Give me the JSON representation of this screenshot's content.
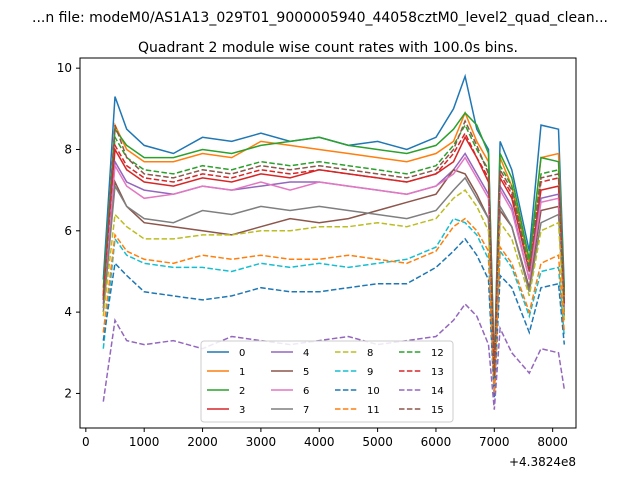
{
  "chart_data": {
    "type": "line",
    "suptitle": "...n file: modeM0/AS1A13_029T01_9000005940_44058cztM0_level2_quad_clean...",
    "title": "Quadrant 2 module wise count rates with 100.0s bins.",
    "xlabel": "",
    "ylabel": "",
    "x_offset_label": "+4.3824e8",
    "xlim": [
      -100,
      8400
    ],
    "ylim": [
      1.15,
      10.25
    ],
    "x_ticks": [
      0,
      1000,
      2000,
      3000,
      4000,
      5000,
      6000,
      7000,
      8000
    ],
    "y_ticks": [
      2,
      4,
      6,
      8,
      10
    ],
    "grid": false,
    "legend_placement": "lower-center",
    "legend_columns": 4,
    "x": [
      300,
      500,
      700,
      1000,
      1500,
      2000,
      2500,
      3000,
      3500,
      4000,
      4500,
      5000,
      5500,
      6000,
      6300,
      6500,
      6700,
      6900,
      7000,
      7100,
      7300,
      7600,
      7800,
      8100,
      8200
    ],
    "series": [
      {
        "name": "0",
        "style": "solid",
        "color": "#1f77b4",
        "values": [
          4.8,
          9.3,
          8.5,
          8.1,
          7.9,
          8.3,
          8.2,
          8.4,
          8.2,
          8.3,
          8.1,
          8.2,
          8.0,
          8.3,
          9.0,
          9.8,
          8.5,
          8.0,
          2.6,
          8.2,
          7.5,
          5.5,
          8.6,
          8.5,
          4.6
        ]
      },
      {
        "name": "1",
        "style": "solid",
        "color": "#ff7f0e",
        "values": [
          4.5,
          8.6,
          8.0,
          7.7,
          7.7,
          7.9,
          7.8,
          8.2,
          8.1,
          8.0,
          7.9,
          7.8,
          7.7,
          7.9,
          8.2,
          8.9,
          8.2,
          7.7,
          2.5,
          7.8,
          7.1,
          5.2,
          7.8,
          7.9,
          4.4
        ]
      },
      {
        "name": "2",
        "style": "solid",
        "color": "#2ca02c",
        "values": [
          4.6,
          8.5,
          8.1,
          7.8,
          7.8,
          8.0,
          7.9,
          8.1,
          8.2,
          8.3,
          8.1,
          8.0,
          7.9,
          8.1,
          8.5,
          8.9,
          8.6,
          7.9,
          2.6,
          7.9,
          7.3,
          5.3,
          7.8,
          7.7,
          4.5
        ]
      },
      {
        "name": "3",
        "style": "solid",
        "color": "#d62728",
        "values": [
          4.3,
          8.0,
          7.5,
          7.2,
          7.1,
          7.3,
          7.2,
          7.4,
          7.3,
          7.5,
          7.4,
          7.3,
          7.2,
          7.4,
          7.7,
          8.3,
          7.8,
          7.2,
          2.4,
          7.3,
          6.8,
          5.0,
          7.0,
          7.1,
          4.2
        ]
      },
      {
        "name": "4",
        "style": "solid",
        "color": "#9467bd",
        "values": [
          4.2,
          7.7,
          7.2,
          7.0,
          6.9,
          7.1,
          7.0,
          7.1,
          7.2,
          7.2,
          7.1,
          7.0,
          6.9,
          7.1,
          7.5,
          7.9,
          7.4,
          6.9,
          2.3,
          7.1,
          6.6,
          4.8,
          6.8,
          6.9,
          4.1
        ]
      },
      {
        "name": "5",
        "style": "solid",
        "color": "#8c564b",
        "values": [
          4.1,
          7.2,
          6.6,
          6.2,
          6.1,
          6.0,
          5.9,
          6.1,
          6.3,
          6.2,
          6.3,
          6.5,
          6.7,
          6.9,
          7.5,
          7.4,
          6.9,
          6.3,
          2.2,
          6.5,
          6.1,
          4.6,
          6.5,
          6.6,
          4.0
        ]
      },
      {
        "name": "6",
        "style": "solid",
        "color": "#e377c2",
        "values": [
          4.3,
          7.6,
          7.1,
          6.8,
          6.9,
          7.1,
          7.0,
          7.2,
          7.0,
          7.2,
          7.1,
          7.0,
          6.9,
          7.1,
          7.4,
          7.8,
          7.3,
          6.8,
          2.3,
          7.0,
          6.5,
          4.8,
          6.7,
          6.8,
          4.1
        ]
      },
      {
        "name": "7",
        "style": "solid",
        "color": "#7f7f7f",
        "values": [
          4.0,
          7.1,
          6.6,
          6.3,
          6.2,
          6.5,
          6.4,
          6.6,
          6.5,
          6.6,
          6.5,
          6.4,
          6.3,
          6.5,
          7.0,
          7.3,
          6.8,
          6.3,
          2.1,
          6.6,
          6.1,
          4.5,
          6.2,
          6.4,
          3.9
        ]
      },
      {
        "name": "8",
        "style": "dashed",
        "color": "#bcbd22",
        "values": [
          3.9,
          6.4,
          6.1,
          5.8,
          5.8,
          5.9,
          5.9,
          6.0,
          6.0,
          6.1,
          6.1,
          6.2,
          6.1,
          6.3,
          6.8,
          7.0,
          6.6,
          6.0,
          2.1,
          6.2,
          5.8,
          4.4,
          6.0,
          6.2,
          3.8
        ]
      },
      {
        "name": "9",
        "style": "dashed",
        "color": "#17becf",
        "values": [
          3.1,
          5.8,
          5.4,
          5.2,
          5.1,
          5.1,
          5.0,
          5.2,
          5.1,
          5.2,
          5.1,
          5.2,
          5.3,
          5.6,
          6.3,
          6.2,
          5.9,
          5.3,
          2.0,
          5.5,
          5.1,
          3.9,
          5.0,
          5.1,
          3.4
        ]
      },
      {
        "name": "10",
        "style": "dashed",
        "color": "#1f77b4",
        "values": [
          3.3,
          5.2,
          4.9,
          4.5,
          4.4,
          4.3,
          4.4,
          4.6,
          4.5,
          4.5,
          4.6,
          4.7,
          4.7,
          5.1,
          5.5,
          5.8,
          5.4,
          4.8,
          1.9,
          4.9,
          4.6,
          3.5,
          4.6,
          4.7,
          3.2
        ]
      },
      {
        "name": "11",
        "style": "dashed",
        "color": "#ff7f0e",
        "values": [
          3.5,
          5.9,
          5.5,
          5.3,
          5.2,
          5.4,
          5.3,
          5.4,
          5.3,
          5.3,
          5.4,
          5.3,
          5.2,
          5.5,
          6.1,
          6.3,
          6.0,
          5.5,
          2.0,
          5.6,
          5.2,
          4.0,
          5.2,
          5.4,
          3.5
        ]
      },
      {
        "name": "12",
        "style": "dashed",
        "color": "#2ca02c",
        "values": [
          4.4,
          8.3,
          7.8,
          7.5,
          7.4,
          7.6,
          7.5,
          7.7,
          7.6,
          7.7,
          7.6,
          7.5,
          7.4,
          7.6,
          8.1,
          8.6,
          8.0,
          7.5,
          2.5,
          7.6,
          7.1,
          5.1,
          7.4,
          7.5,
          4.3
        ]
      },
      {
        "name": "13",
        "style": "dashed",
        "color": "#d62728",
        "values": [
          4.4,
          8.1,
          7.6,
          7.3,
          7.2,
          7.4,
          7.3,
          7.5,
          7.4,
          7.5,
          7.4,
          7.3,
          7.2,
          7.4,
          7.9,
          8.4,
          7.8,
          7.3,
          2.4,
          7.4,
          6.9,
          5.0,
          7.2,
          7.3,
          4.2
        ]
      },
      {
        "name": "14",
        "style": "dashed",
        "color": "#9467bd",
        "values": [
          1.8,
          3.8,
          3.3,
          3.2,
          3.3,
          3.1,
          3.4,
          3.3,
          3.2,
          3.3,
          3.4,
          3.2,
          3.3,
          3.4,
          3.8,
          4.2,
          3.9,
          3.2,
          1.6,
          3.6,
          3.0,
          2.5,
          3.1,
          3.0,
          2.1
        ]
      },
      {
        "name": "15",
        "style": "dashed",
        "color": "#8c564b",
        "values": [
          4.3,
          8.6,
          7.8,
          7.4,
          7.3,
          7.5,
          7.4,
          7.6,
          7.5,
          7.6,
          7.5,
          7.4,
          7.3,
          7.5,
          8.0,
          8.7,
          8.1,
          7.4,
          2.4,
          7.5,
          7.0,
          5.0,
          7.3,
          7.4,
          4.2
        ]
      }
    ]
  }
}
